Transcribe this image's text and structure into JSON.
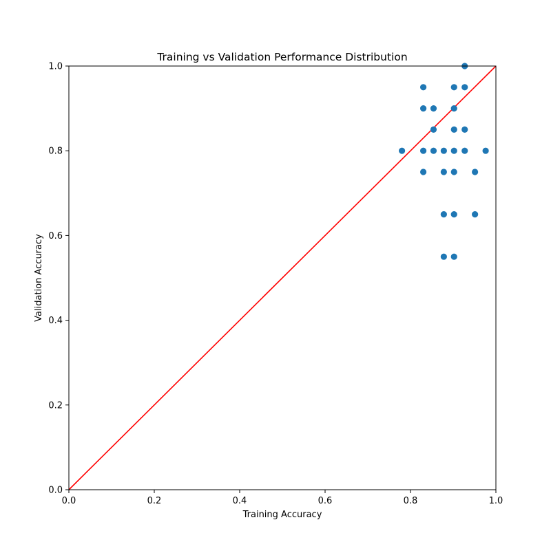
{
  "chart_data": {
    "type": "scatter",
    "title": "Training vs Validation Performance Distribution",
    "xlabel": "Training Accuracy",
    "ylabel": "Validation Accuracy",
    "xlim": [
      0.0,
      1.0
    ],
    "ylim": [
      0.0,
      1.0
    ],
    "xticks": [
      "0.0",
      "0.2",
      "0.4",
      "0.6",
      "0.8",
      "1.0"
    ],
    "yticks": [
      "0.0",
      "0.2",
      "0.4",
      "0.6",
      "0.8",
      "1.0"
    ],
    "grid": false,
    "legend": null,
    "series": [
      {
        "color": "#1f77b4",
        "marker": "circle",
        "points": [
          {
            "x": 0.78,
            "y": 0.8
          },
          {
            "x": 0.83,
            "y": 0.95
          },
          {
            "x": 0.83,
            "y": 0.9
          },
          {
            "x": 0.83,
            "y": 0.8
          },
          {
            "x": 0.83,
            "y": 0.75
          },
          {
            "x": 0.854,
            "y": 0.9
          },
          {
            "x": 0.854,
            "y": 0.85
          },
          {
            "x": 0.854,
            "y": 0.8
          },
          {
            "x": 0.878,
            "y": 0.8
          },
          {
            "x": 0.878,
            "y": 0.75
          },
          {
            "x": 0.878,
            "y": 0.65
          },
          {
            "x": 0.878,
            "y": 0.55
          },
          {
            "x": 0.902,
            "y": 0.95
          },
          {
            "x": 0.902,
            "y": 0.9
          },
          {
            "x": 0.902,
            "y": 0.85
          },
          {
            "x": 0.902,
            "y": 0.8
          },
          {
            "x": 0.902,
            "y": 0.75
          },
          {
            "x": 0.902,
            "y": 0.65
          },
          {
            "x": 0.902,
            "y": 0.55
          },
          {
            "x": 0.927,
            "y": 1.0
          },
          {
            "x": 0.927,
            "y": 0.95
          },
          {
            "x": 0.927,
            "y": 0.85
          },
          {
            "x": 0.927,
            "y": 0.8
          },
          {
            "x": 0.951,
            "y": 0.75
          },
          {
            "x": 0.951,
            "y": 0.65
          },
          {
            "x": 0.976,
            "y": 0.8
          }
        ]
      }
    ],
    "reference_line": {
      "color": "#ff0000",
      "x": [
        0.0,
        1.0
      ],
      "y": [
        0.0,
        1.0
      ]
    }
  }
}
